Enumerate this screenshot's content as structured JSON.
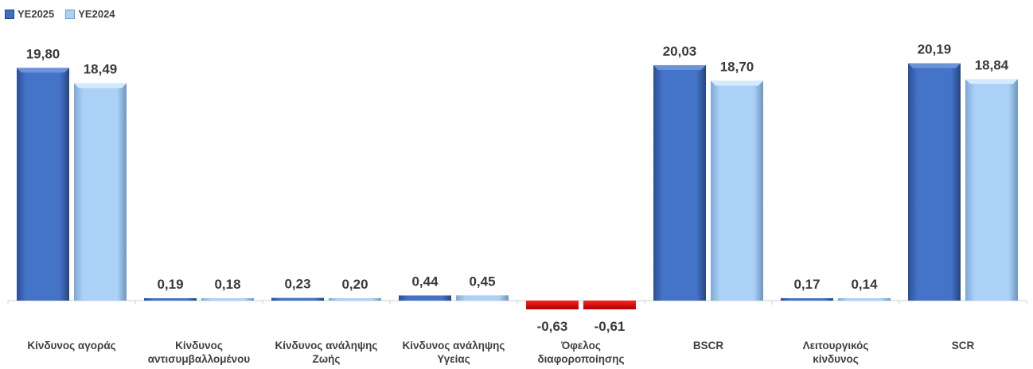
{
  "chart_data": {
    "type": "bar",
    "categories": [
      [
        "Κίνδυνος αγοράς"
      ],
      [
        "Κίνδυνος",
        "αντισυμβαλλομένου"
      ],
      [
        "Κίνδυνος ανάληψης",
        "Ζωής"
      ],
      [
        "Κίνδυνος ανάληψης",
        "Υγείας"
      ],
      [
        "Όφελος",
        "διαφοροποίησης"
      ],
      [
        "BSCR"
      ],
      [
        "Λειτουργικός",
        "κίνδυνος"
      ],
      [
        "SCR"
      ]
    ],
    "series": [
      {
        "name": "YE2025",
        "values": [
          19.8,
          0.19,
          0.23,
          0.44,
          -0.63,
          20.03,
          0.17,
          20.19
        ],
        "labels": [
          "19,80",
          "0,19",
          "0,23",
          "0,44",
          "-0,63",
          "20,03",
          "0,17",
          "20,19"
        ]
      },
      {
        "name": "YE2024",
        "values": [
          18.49,
          0.18,
          0.2,
          0.45,
          -0.61,
          18.7,
          0.14,
          18.84
        ],
        "labels": [
          "18,49",
          "0,18",
          "0,20",
          "0,45",
          "-0,61",
          "18,70",
          "0,14",
          "18,84"
        ]
      }
    ],
    "colors": {
      "YE2025": "#4472c4",
      "YE2024": "#a9d0f5",
      "negative": "#e00000"
    },
    "legend": "top-left",
    "grid": false
  }
}
